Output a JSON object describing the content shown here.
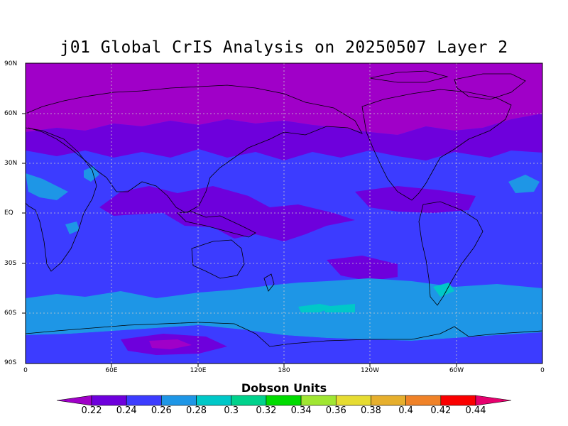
{
  "title": "j01 Global CrIS Analysis on 20250507 Layer 2",
  "lat_labels": [
    "90N",
    "60N",
    "30N",
    "EQ",
    "30S",
    "60S",
    "90S"
  ],
  "lon_labels": [
    "0",
    "60E",
    "120E",
    "180",
    "120W",
    "60W",
    "0"
  ],
  "colorbar": {
    "title": "Dobson Units",
    "ticks": [
      "0.22",
      "0.24",
      "0.26",
      "0.28",
      "0.3",
      "0.32",
      "0.34",
      "0.36",
      "0.38",
      "0.4",
      "0.42",
      "0.44"
    ],
    "colors": [
      "#a000c8",
      "#6e00dc",
      "#3c3cff",
      "#1e96e6",
      "#00c8c8",
      "#00d28c",
      "#00dc00",
      "#a0e632",
      "#e6dc32",
      "#e6af2d",
      "#f08228",
      "#fa0000",
      "#e6006e"
    ]
  },
  "colors": {
    "ocean_default": "#3c3cff",
    "high_lat": "#a000c8",
    "low_band": "#6e00dc",
    "southern_ring": "#1e96e6",
    "cyan_patch": "#00c8c8"
  }
}
